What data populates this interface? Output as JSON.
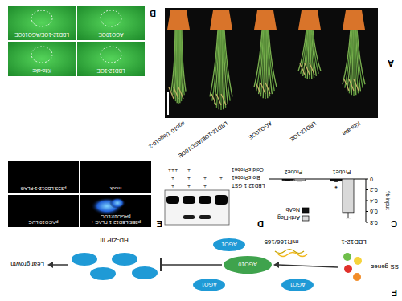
{
  "chart_data": {
    "type": "bar",
    "panel_label": "C",
    "categories": [
      "Probe1",
      "Probe2"
    ],
    "series": [
      {
        "name": "Anti-Flag",
        "color": "#d9d9d9",
        "values": [
          0.62,
          0.03
        ],
        "errors": [
          0.1,
          0.01
        ]
      },
      {
        "name": "NoAb",
        "color": "#111111",
        "values": [
          0.04,
          0.02
        ],
        "errors": [
          0.01,
          0.005
        ]
      }
    ],
    "y_label": "% input",
    "ylim": [
      0,
      0.8
    ],
    "yticks": [
      0,
      0.2,
      0.4,
      0.6,
      0.8
    ],
    "legend": "upper right",
    "annotations": [
      "*"
    ]
  },
  "figure": {
    "panel_a": {
      "label": "A",
      "genotypes": [
        "Kita-ake",
        "LBD12-1OE",
        "AGO10OE",
        "LBD12-1OE/AGO10OE",
        "ago10-1/ago10-2"
      ]
    },
    "panel_b": {
      "label": "B",
      "images": [
        "LBD12-1OE",
        "Kita-ake",
        "AGO10OE",
        "LBD12-1OE/AGO10OE"
      ]
    },
    "panel_d": {
      "label": "D",
      "rows": [
        {
          "name": "LBD12-1-GST",
          "lanes": [
            "-",
            "+",
            "+",
            "+"
          ]
        },
        {
          "name": "Bio-sProbe1",
          "lanes": [
            "+",
            "+",
            "+",
            "+"
          ]
        },
        {
          "name": "Cold-sProbe1",
          "lanes": [
            "-",
            "-",
            "+",
            "+++"
          ]
        }
      ]
    },
    "panel_e": {
      "label": "E",
      "images": [
        [
          "p35S:LBD12-1-FLAG +",
          "pAGO10:LUC"
        ],
        [
          "pAGO10:LUC"
        ],
        [
          "mock"
        ],
        [
          "p35S:LBD12-1-FLAG"
        ]
      ]
    },
    "panel_f": {
      "label": "F",
      "upstream": "SS genes",
      "regulator": "LBD12-1",
      "center": "AGO10",
      "partner": "AGO1",
      "mirna": "miR166/165",
      "target": "HD-ZIP III",
      "outcome": "Leaf growth"
    }
  }
}
